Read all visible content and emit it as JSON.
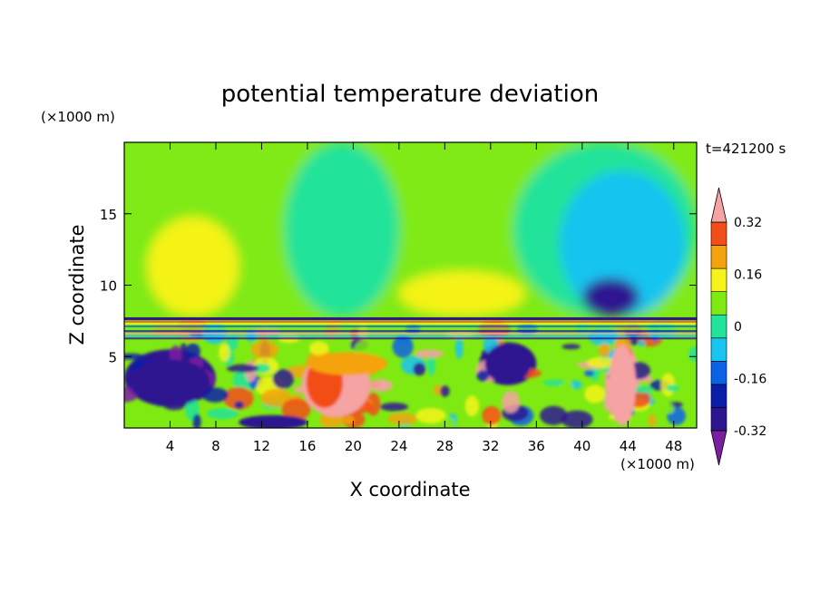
{
  "chart_data": {
    "type": "heatmap",
    "title": "potential temperature deviation",
    "time_label": "t=421200 s",
    "xlabel": "X coordinate",
    "ylabel": "Z coordinate",
    "x_unit": "(×1000 m)",
    "y_unit": "(×1000 m)",
    "xlim": [
      0,
      50
    ],
    "ylim": [
      0,
      20
    ],
    "x_ticks": [
      4,
      8,
      12,
      16,
      20,
      24,
      28,
      32,
      36,
      40,
      44,
      48
    ],
    "y_ticks": [
      5,
      10,
      15
    ],
    "colorbar": {
      "levels": [
        -0.4,
        -0.32,
        -0.24,
        -0.16,
        -0.08,
        0,
        0.08,
        0.16,
        0.24,
        0.32,
        0.4
      ],
      "colors": [
        "#7b1fa2",
        "#2e1690",
        "#0b1ea8",
        "#0a62e6",
        "#18c4f0",
        "#22e39a",
        "#7fea12",
        "#f5f318",
        "#f5a20f",
        "#f34e18",
        "#f5a3a3"
      ],
      "labels": [
        "-0.32",
        "-0.16",
        "0",
        "0.16",
        "0.32"
      ],
      "label_values": [
        -0.32,
        -0.16,
        0,
        0.16,
        0.32
      ]
    },
    "features": [
      {
        "level": 0.08,
        "x_range": [
          0,
          50
        ],
        "z_range": [
          7.8,
          20
        ],
        "note": "upper layer mostly light green"
      },
      {
        "level": 0.0,
        "x_range": [
          14,
          24
        ],
        "z_range": [
          7.8,
          20
        ]
      },
      {
        "level": 0.0,
        "x_range": [
          34,
          50
        ],
        "z_range": [
          7.8,
          20
        ]
      },
      {
        "level": -0.08,
        "x_range": [
          38,
          49
        ],
        "z_range": [
          7.8,
          18
        ]
      },
      {
        "level": -0.32,
        "x_range": [
          40,
          45
        ],
        "z_range": [
          7.8,
          10.5
        ]
      },
      {
        "level": 0.16,
        "x_range": [
          2,
          10
        ],
        "z_range": [
          7.8,
          14.8
        ]
      },
      {
        "level": 0.16,
        "x_range": [
          24,
          35
        ],
        "z_range": [
          7.8,
          11
        ]
      },
      {
        "level": 0.4,
        "x_range": [
          16,
          21
        ],
        "z_range": [
          0.8,
          5.2
        ]
      },
      {
        "level": 0.4,
        "x_range": [
          42,
          45
        ],
        "z_range": [
          0.3,
          6
        ]
      },
      {
        "level": -0.32,
        "x_range": [
          0,
          8
        ],
        "z_range": [
          1.5,
          5.5
        ]
      },
      {
        "level": -0.32,
        "x_range": [
          31,
          36
        ],
        "z_range": [
          3,
          6
        ]
      }
    ]
  }
}
